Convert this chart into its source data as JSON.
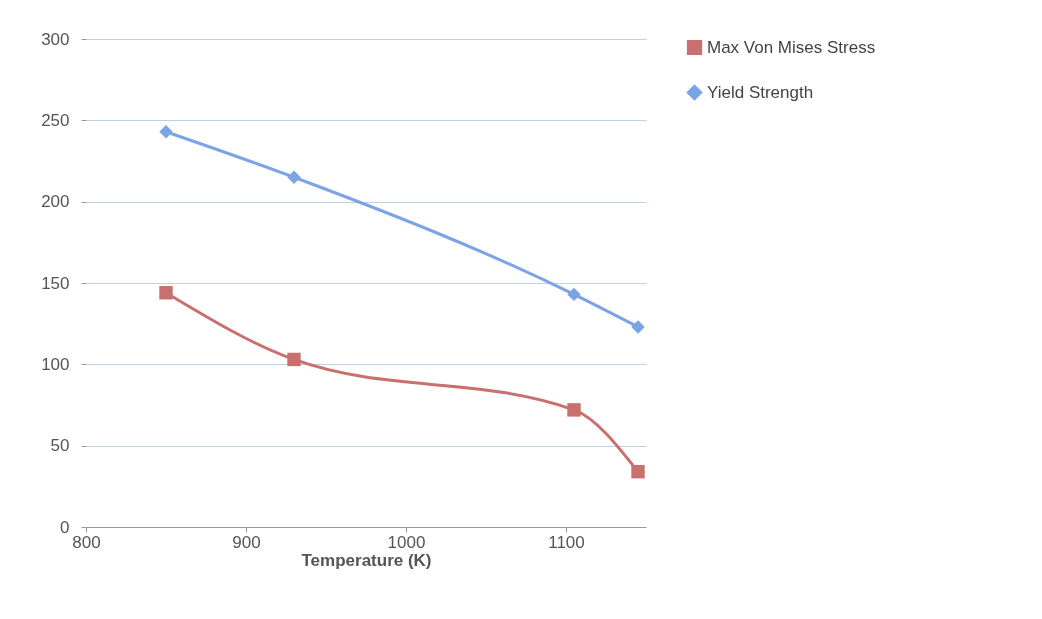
{
  "chart_data": {
    "type": "line",
    "xlabel": "Temperature (K)",
    "x": [
      850,
      930,
      1105,
      1145
    ],
    "series": [
      {
        "name": "Max Von Mises Stress",
        "color": "#c9706e",
        "marker": "square",
        "values": [
          144,
          103,
          72,
          34
        ]
      },
      {
        "name": "Yield Strength",
        "color": "#7ba3e6",
        "marker": "diamond",
        "values": [
          243,
          215,
          143,
          123
        ]
      }
    ],
    "xlim": [
      800,
      1150
    ],
    "xticks": [
      800,
      900,
      1000,
      1100
    ],
    "ylim": [
      0,
      300
    ],
    "yticks": [
      0,
      50,
      100,
      150,
      200,
      250,
      300
    ],
    "grid": "y",
    "legend": "right"
  }
}
